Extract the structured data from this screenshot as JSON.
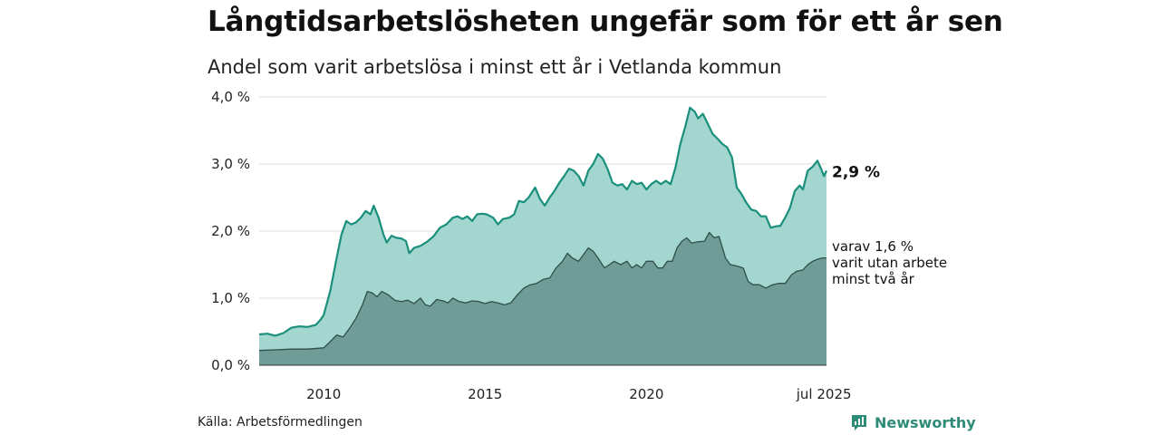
{
  "title": "Långtidsarbetslösheten ungefär som för ett år sen",
  "subtitle": "Andel som varit arbetslösa i minst ett år i Vetlanda kommun",
  "source": "Källa: Arbetsförmedlingen",
  "brand": {
    "name": "Newsworthy",
    "icon": "newsworthy-logo-icon",
    "color": "#2e8b78"
  },
  "chart_data": {
    "type": "area",
    "x_unit": "year",
    "ylim": [
      0,
      4
    ],
    "xlim": [
      2008.0,
      2025.58
    ],
    "grid": true,
    "y_ticks": [
      {
        "value": 0,
        "label": "0,0 %"
      },
      {
        "value": 1,
        "label": "1,0 %"
      },
      {
        "value": 2,
        "label": "2,0 %"
      },
      {
        "value": 3,
        "label": "3,0 %"
      },
      {
        "value": 4,
        "label": "4,0 %"
      }
    ],
    "x_ticks": [
      {
        "value": 2010,
        "label": "2010"
      },
      {
        "value": 2015,
        "label": "2015"
      },
      {
        "value": 2020,
        "label": "2020"
      },
      {
        "value": 2025.5,
        "label": "jul 2025"
      }
    ],
    "series": [
      {
        "name": "",
        "color": "#1a8f7c",
        "fill": "#a3d6cf",
        "end_label": "2,9 %",
        "points": [
          [
            2008.0,
            0.46
          ],
          [
            2008.25,
            0.47
          ],
          [
            2008.5,
            0.44
          ],
          [
            2008.75,
            0.48
          ],
          [
            2009.0,
            0.56
          ],
          [
            2009.25,
            0.58
          ],
          [
            2009.5,
            0.57
          ],
          [
            2009.75,
            0.6
          ],
          [
            2009.9,
            0.68
          ],
          [
            2010.0,
            0.75
          ],
          [
            2010.2,
            1.1
          ],
          [
            2010.4,
            1.6
          ],
          [
            2010.55,
            1.95
          ],
          [
            2010.7,
            2.15
          ],
          [
            2010.85,
            2.1
          ],
          [
            2011.0,
            2.13
          ],
          [
            2011.15,
            2.2
          ],
          [
            2011.3,
            2.3
          ],
          [
            2011.45,
            2.25
          ],
          [
            2011.55,
            2.38
          ],
          [
            2011.7,
            2.2
          ],
          [
            2011.85,
            1.95
          ],
          [
            2011.95,
            1.83
          ],
          [
            2012.1,
            1.93
          ],
          [
            2012.25,
            1.9
          ],
          [
            2012.4,
            1.89
          ],
          [
            2012.55,
            1.85
          ],
          [
            2012.65,
            1.67
          ],
          [
            2012.8,
            1.75
          ],
          [
            2013.0,
            1.78
          ],
          [
            2013.2,
            1.84
          ],
          [
            2013.4,
            1.92
          ],
          [
            2013.6,
            2.05
          ],
          [
            2013.8,
            2.1
          ],
          [
            2014.0,
            2.2
          ],
          [
            2014.15,
            2.22
          ],
          [
            2014.3,
            2.18
          ],
          [
            2014.45,
            2.22
          ],
          [
            2014.6,
            2.15
          ],
          [
            2014.75,
            2.25
          ],
          [
            2014.9,
            2.26
          ],
          [
            2015.05,
            2.25
          ],
          [
            2015.25,
            2.2
          ],
          [
            2015.4,
            2.1
          ],
          [
            2015.55,
            2.18
          ],
          [
            2015.75,
            2.2
          ],
          [
            2015.9,
            2.25
          ],
          [
            2016.05,
            2.45
          ],
          [
            2016.2,
            2.43
          ],
          [
            2016.35,
            2.5
          ],
          [
            2016.55,
            2.65
          ],
          [
            2016.7,
            2.48
          ],
          [
            2016.85,
            2.38
          ],
          [
            2017.0,
            2.5
          ],
          [
            2017.15,
            2.6
          ],
          [
            2017.3,
            2.72
          ],
          [
            2017.45,
            2.82
          ],
          [
            2017.6,
            2.93
          ],
          [
            2017.75,
            2.9
          ],
          [
            2017.9,
            2.82
          ],
          [
            2018.05,
            2.68
          ],
          [
            2018.2,
            2.9
          ],
          [
            2018.35,
            3.0
          ],
          [
            2018.5,
            3.15
          ],
          [
            2018.65,
            3.08
          ],
          [
            2018.8,
            2.92
          ],
          [
            2018.95,
            2.72
          ],
          [
            2019.1,
            2.68
          ],
          [
            2019.25,
            2.7
          ],
          [
            2019.4,
            2.62
          ],
          [
            2019.55,
            2.75
          ],
          [
            2019.7,
            2.7
          ],
          [
            2019.85,
            2.72
          ],
          [
            2020.0,
            2.62
          ],
          [
            2020.15,
            2.7
          ],
          [
            2020.3,
            2.75
          ],
          [
            2020.45,
            2.7
          ],
          [
            2020.6,
            2.75
          ],
          [
            2020.75,
            2.7
          ],
          [
            2020.9,
            2.95
          ],
          [
            2021.05,
            3.3
          ],
          [
            2021.2,
            3.55
          ],
          [
            2021.35,
            3.84
          ],
          [
            2021.5,
            3.78
          ],
          [
            2021.6,
            3.68
          ],
          [
            2021.75,
            3.75
          ],
          [
            2021.9,
            3.6
          ],
          [
            2022.05,
            3.45
          ],
          [
            2022.2,
            3.38
          ],
          [
            2022.35,
            3.3
          ],
          [
            2022.5,
            3.25
          ],
          [
            2022.65,
            3.1
          ],
          [
            2022.8,
            2.65
          ],
          [
            2022.95,
            2.55
          ],
          [
            2023.1,
            2.42
          ],
          [
            2023.25,
            2.32
          ],
          [
            2023.4,
            2.3
          ],
          [
            2023.55,
            2.22
          ],
          [
            2023.7,
            2.22
          ],
          [
            2023.85,
            2.05
          ],
          [
            2024.0,
            2.07
          ],
          [
            2024.15,
            2.08
          ],
          [
            2024.3,
            2.2
          ],
          [
            2024.45,
            2.35
          ],
          [
            2024.6,
            2.6
          ],
          [
            2024.75,
            2.68
          ],
          [
            2024.85,
            2.62
          ],
          [
            2025.0,
            2.9
          ],
          [
            2025.15,
            2.96
          ],
          [
            2025.3,
            3.05
          ],
          [
            2025.42,
            2.92
          ],
          [
            2025.5,
            2.82
          ],
          [
            2025.58,
            2.9
          ]
        ]
      },
      {
        "name": "",
        "color": "#2f4f4a",
        "fill": "#709c97",
        "end_label": "varav 1,6 %",
        "end_note": [
          "varit utan arbete",
          "minst två år"
        ],
        "points": [
          [
            2008.0,
            0.22
          ],
          [
            2008.5,
            0.23
          ],
          [
            2009.0,
            0.24
          ],
          [
            2009.5,
            0.24
          ],
          [
            2010.0,
            0.26
          ],
          [
            2010.2,
            0.35
          ],
          [
            2010.4,
            0.45
          ],
          [
            2010.6,
            0.42
          ],
          [
            2010.8,
            0.55
          ],
          [
            2011.0,
            0.7
          ],
          [
            2011.2,
            0.9
          ],
          [
            2011.35,
            1.1
          ],
          [
            2011.5,
            1.08
          ],
          [
            2011.65,
            1.02
          ],
          [
            2011.8,
            1.1
          ],
          [
            2012.0,
            1.05
          ],
          [
            2012.2,
            0.97
          ],
          [
            2012.4,
            0.95
          ],
          [
            2012.6,
            0.97
          ],
          [
            2012.8,
            0.92
          ],
          [
            2013.0,
            1.0
          ],
          [
            2013.15,
            0.9
          ],
          [
            2013.3,
            0.88
          ],
          [
            2013.5,
            0.98
          ],
          [
            2013.7,
            0.96
          ],
          [
            2013.85,
            0.93
          ],
          [
            2014.0,
            1.0
          ],
          [
            2014.2,
            0.95
          ],
          [
            2014.4,
            0.93
          ],
          [
            2014.6,
            0.96
          ],
          [
            2014.8,
            0.95
          ],
          [
            2015.0,
            0.92
          ],
          [
            2015.2,
            0.95
          ],
          [
            2015.4,
            0.93
          ],
          [
            2015.6,
            0.9
          ],
          [
            2015.8,
            0.93
          ],
          [
            2016.0,
            1.05
          ],
          [
            2016.2,
            1.15
          ],
          [
            2016.4,
            1.2
          ],
          [
            2016.6,
            1.22
          ],
          [
            2016.8,
            1.28
          ],
          [
            2017.0,
            1.3
          ],
          [
            2017.2,
            1.45
          ],
          [
            2017.4,
            1.55
          ],
          [
            2017.55,
            1.67
          ],
          [
            2017.7,
            1.6
          ],
          [
            2017.9,
            1.55
          ],
          [
            2018.05,
            1.65
          ],
          [
            2018.2,
            1.75
          ],
          [
            2018.35,
            1.7
          ],
          [
            2018.5,
            1.6
          ],
          [
            2018.7,
            1.45
          ],
          [
            2018.85,
            1.5
          ],
          [
            2019.0,
            1.55
          ],
          [
            2019.2,
            1.5
          ],
          [
            2019.4,
            1.55
          ],
          [
            2019.55,
            1.45
          ],
          [
            2019.7,
            1.5
          ],
          [
            2019.85,
            1.45
          ],
          [
            2020.0,
            1.55
          ],
          [
            2020.2,
            1.55
          ],
          [
            2020.35,
            1.45
          ],
          [
            2020.5,
            1.45
          ],
          [
            2020.65,
            1.55
          ],
          [
            2020.8,
            1.55
          ],
          [
            2020.95,
            1.75
          ],
          [
            2021.1,
            1.85
          ],
          [
            2021.25,
            1.9
          ],
          [
            2021.4,
            1.82
          ],
          [
            2021.6,
            1.84
          ],
          [
            2021.8,
            1.85
          ],
          [
            2021.95,
            1.98
          ],
          [
            2022.1,
            1.9
          ],
          [
            2022.25,
            1.92
          ],
          [
            2022.45,
            1.6
          ],
          [
            2022.6,
            1.5
          ],
          [
            2022.8,
            1.48
          ],
          [
            2023.0,
            1.45
          ],
          [
            2023.15,
            1.25
          ],
          [
            2023.3,
            1.2
          ],
          [
            2023.5,
            1.2
          ],
          [
            2023.7,
            1.15
          ],
          [
            2023.9,
            1.2
          ],
          [
            2024.1,
            1.22
          ],
          [
            2024.3,
            1.22
          ],
          [
            2024.5,
            1.35
          ],
          [
            2024.65,
            1.4
          ],
          [
            2024.85,
            1.42
          ],
          [
            2025.0,
            1.5
          ],
          [
            2025.15,
            1.55
          ],
          [
            2025.3,
            1.58
          ],
          [
            2025.45,
            1.6
          ],
          [
            2025.58,
            1.6
          ]
        ]
      }
    ]
  }
}
